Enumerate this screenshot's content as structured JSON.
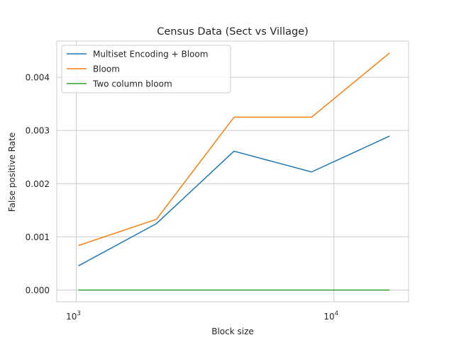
{
  "chart_data": {
    "type": "line",
    "title": "Census Data (Sect vs Village)",
    "xlabel": "Block size",
    "ylabel": "False positive Rate",
    "x_scale": "log",
    "x": [
      1024,
      2048,
      4096,
      8192,
      16384
    ],
    "xlim": [
      840,
      19500
    ],
    "ylim": [
      -0.00022,
      0.00468
    ],
    "x_ticks": [
      {
        "value": 1000,
        "base": "10",
        "exp": "3"
      },
      {
        "value": 10000,
        "base": "10",
        "exp": "4"
      }
    ],
    "y_ticks": [
      {
        "value": 0,
        "label": "0.000"
      },
      {
        "value": 0.001,
        "label": "0.001"
      },
      {
        "value": 0.002,
        "label": "0.002"
      },
      {
        "value": 0.003,
        "label": "0.003"
      },
      {
        "value": 0.004,
        "label": "0.004"
      }
    ],
    "grid": true,
    "legend_position": "top-left",
    "series": [
      {
        "name": "Multiset Encoding + Bloom",
        "color": "#1f77b4",
        "values": [
          0.00046,
          0.00125,
          0.00261,
          0.00222,
          0.00289
        ]
      },
      {
        "name": "Bloom",
        "color": "#ff7f0e",
        "values": [
          0.00084,
          0.00133,
          0.00325,
          0.00325,
          0.00445
        ]
      },
      {
        "name": "Two column bloom",
        "color": "#2ca02c",
        "values": [
          0.0,
          0.0,
          0.0,
          0.0,
          0.0
        ]
      }
    ]
  }
}
